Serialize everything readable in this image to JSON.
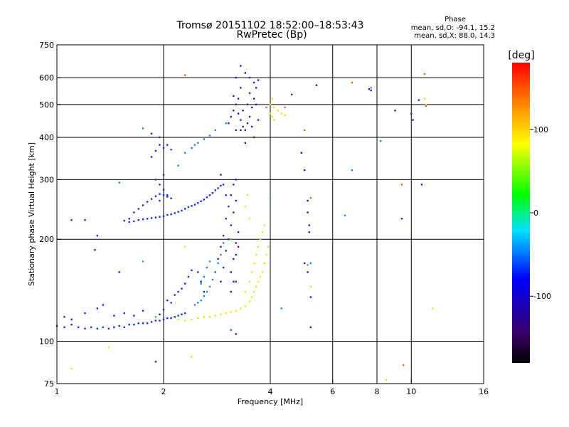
{
  "header": {
    "title": "Tromsø 20151102 18:52:00–18:53:43",
    "subtitle": "RwPretec (Bp)"
  },
  "phase_box": {
    "title": "Phase",
    "line1": "mean, sd,O: -94.1, 15.2",
    "line2": "mean, sd,X:  88.0, 14.3"
  },
  "chart_data": {
    "type": "scatter",
    "xlabel": "Frequency [MHz]",
    "ylabel": "Stationary phase Virtual Height [km]",
    "x_scale": "log",
    "y_scale": "log",
    "xlim": [
      1,
      16
    ],
    "ylim": [
      75,
      750
    ],
    "x_ticks": [
      1,
      2,
      4,
      6,
      8,
      10,
      16
    ],
    "x_tick_labels": [
      "1",
      "2",
      "4",
      "6",
      "8",
      "10",
      "16"
    ],
    "x_grid": [
      2,
      4,
      6,
      8,
      10
    ],
    "y_ticks": [
      75,
      100,
      200,
      300,
      400,
      500,
      600,
      750
    ],
    "y_tick_labels": [
      "75",
      "100",
      "200",
      "300",
      "400",
      "500",
      "600",
      "750"
    ],
    "y_grid": [
      100,
      200,
      300,
      400,
      500,
      600
    ],
    "grid": true,
    "colorbar": {
      "label": "[deg]",
      "range": [
        -180,
        180
      ],
      "ticks": [
        100,
        0,
        -100
      ],
      "tick_labels": [
        "100",
        "0",
        "-100"
      ]
    },
    "series": [
      {
        "color": "#1a2fe0",
        "points": [
          [
            1.0,
            111
          ],
          [
            1.05,
            110
          ],
          [
            1.1,
            112
          ],
          [
            1.15,
            110
          ],
          [
            1.2,
            109
          ],
          [
            1.25,
            110
          ],
          [
            1.3,
            109
          ],
          [
            1.35,
            110
          ],
          [
            1.4,
            109
          ],
          [
            1.45,
            110
          ],
          [
            1.5,
            111
          ],
          [
            1.55,
            110
          ],
          [
            1.6,
            112
          ],
          [
            1.65,
            112
          ],
          [
            1.7,
            113
          ],
          [
            1.75,
            113
          ],
          [
            1.8,
            113
          ],
          [
            1.85,
            114
          ],
          [
            1.9,
            115
          ],
          [
            1.95,
            115
          ],
          [
            2.0,
            116
          ],
          [
            2.05,
            117
          ],
          [
            2.1,
            117
          ],
          [
            2.15,
            118
          ],
          [
            2.2,
            119
          ],
          [
            2.25,
            120
          ],
          [
            2.3,
            121
          ],
          [
            1.55,
            227
          ],
          [
            1.6,
            225
          ],
          [
            1.65,
            226
          ],
          [
            1.7,
            228
          ],
          [
            1.75,
            229
          ],
          [
            1.8,
            230
          ],
          [
            1.85,
            231
          ],
          [
            1.9,
            232
          ],
          [
            1.95,
            233
          ],
          [
            2.0,
            234
          ],
          [
            2.05,
            236
          ],
          [
            2.1,
            237
          ],
          [
            2.15,
            239
          ],
          [
            2.2,
            241
          ],
          [
            2.25,
            243
          ],
          [
            2.3,
            246
          ],
          [
            2.35,
            249
          ],
          [
            2.4,
            251
          ],
          [
            2.45,
            253
          ],
          [
            2.5,
            256
          ],
          [
            2.55,
            259
          ],
          [
            2.6,
            262
          ],
          [
            2.65,
            266
          ],
          [
            2.7,
            270
          ],
          [
            2.75,
            274
          ],
          [
            2.8,
            279
          ],
          [
            2.85,
            283
          ],
          [
            2.9,
            288
          ],
          [
            1.65,
            240
          ],
          [
            1.7,
            246
          ],
          [
            1.75,
            252
          ],
          [
            1.8,
            258
          ],
          [
            1.85,
            263
          ],
          [
            1.9,
            268
          ],
          [
            1.95,
            272
          ],
          [
            2.0,
            270
          ],
          [
            2.05,
            267
          ],
          [
            2.1,
            264
          ],
          [
            1.05,
            118
          ],
          [
            1.1,
            116
          ],
          [
            1.2,
            121
          ],
          [
            1.3,
            125
          ],
          [
            1.35,
            128
          ],
          [
            1.45,
            119
          ],
          [
            1.55,
            121
          ],
          [
            1.65,
            119
          ],
          [
            1.75,
            123
          ],
          [
            1.95,
            120
          ],
          [
            2.0,
            124
          ],
          [
            2.05,
            132
          ],
          [
            2.1,
            130
          ],
          [
            2.15,
            137
          ],
          [
            2.2,
            140
          ],
          [
            2.25,
            143
          ],
          [
            2.3,
            148
          ],
          [
            2.35,
            155
          ],
          [
            2.4,
            162
          ],
          [
            2.5,
            160
          ],
          [
            2.55,
            150
          ],
          [
            2.6,
            140
          ],
          [
            1.9,
            300
          ],
          [
            1.95,
            290
          ],
          [
            2.0,
            280
          ],
          [
            2.05,
            270
          ],
          [
            1.95,
            260
          ],
          [
            2.0,
            310
          ],
          [
            1.85,
            350
          ],
          [
            1.9,
            365
          ],
          [
            1.95,
            380
          ],
          [
            2.0,
            372
          ],
          [
            2.05,
            380
          ],
          [
            1.85,
            410
          ],
          [
            1.95,
            400
          ],
          [
            2.1,
            368
          ],
          [
            2.9,
            310
          ],
          [
            2.95,
            290
          ],
          [
            3.0,
            270
          ],
          [
            1.1,
            228
          ],
          [
            1.2,
            228
          ],
          [
            1.28,
            186
          ],
          [
            1.3,
            205
          ],
          [
            1.5,
            160
          ],
          [
            1.6,
            230
          ],
          [
            1.9,
            87
          ]
        ]
      },
      {
        "color": "#2a1fb0",
        "points": [
          [
            2.8,
            160
          ],
          [
            2.85,
            175
          ],
          [
            2.9,
            190
          ],
          [
            2.95,
            205
          ],
          [
            3.0,
            230
          ],
          [
            3.05,
            250
          ],
          [
            3.1,
            270
          ],
          [
            3.15,
            290
          ],
          [
            3.2,
            300
          ],
          [
            2.9,
            150
          ],
          [
            2.95,
            165
          ],
          [
            3.0,
            185
          ],
          [
            3.05,
            200
          ],
          [
            3.1,
            220
          ],
          [
            3.15,
            240
          ],
          [
            3.2,
            260
          ],
          [
            3.1,
            160
          ],
          [
            3.15,
            175
          ],
          [
            3.2,
            195
          ],
          [
            3.25,
            210
          ],
          [
            3.2,
            180
          ],
          [
            3.25,
            190
          ],
          [
            3.1,
            140
          ],
          [
            3.15,
            150
          ],
          [
            3.2,
            150
          ],
          [
            3.1,
            108
          ],
          [
            3.2,
            105
          ],
          [
            3.05,
            440
          ],
          [
            3.1,
            460
          ],
          [
            3.15,
            480
          ],
          [
            3.2,
            500
          ],
          [
            3.25,
            470
          ],
          [
            3.3,
            450
          ],
          [
            3.35,
            430
          ],
          [
            3.4,
            420
          ],
          [
            3.45,
            440
          ],
          [
            3.5,
            460
          ],
          [
            3.55,
            490
          ],
          [
            3.6,
            520
          ],
          [
            3.65,
            560
          ],
          [
            3.7,
            590
          ],
          [
            3.25,
            520
          ],
          [
            3.3,
            560
          ],
          [
            3.2,
            600
          ],
          [
            3.3,
            650
          ],
          [
            3.4,
            620
          ],
          [
            3.5,
            600
          ],
          [
            3.6,
            580
          ],
          [
            3.15,
            530
          ],
          [
            3.35,
            480
          ],
          [
            3.45,
            500
          ],
          [
            3.55,
            430
          ],
          [
            3.4,
            385
          ],
          [
            3.6,
            400
          ],
          [
            3.7,
            450
          ],
          [
            3.65,
            500
          ],
          [
            3.5,
            540
          ],
          [
            3.3,
            420
          ],
          [
            3.2,
            420
          ],
          [
            4.9,
            360
          ],
          [
            5.0,
            320
          ],
          [
            5.1,
            260
          ],
          [
            5.1,
            240
          ],
          [
            5.15,
            220
          ],
          [
            5.15,
            210
          ],
          [
            5.0,
            170
          ],
          [
            5.1,
            160
          ],
          [
            5.2,
            135
          ],
          [
            5.2,
            110
          ],
          [
            4.6,
            535
          ],
          [
            5.4,
            570
          ],
          [
            7.6,
            555
          ],
          [
            7.7,
            550
          ],
          [
            9.0,
            480
          ],
          [
            9.4,
            230
          ],
          [
            10.0,
            470
          ],
          [
            10.1,
            450
          ],
          [
            10.5,
            515
          ],
          [
            10.7,
            290
          ]
        ]
      },
      {
        "color": "#1e8ae8",
        "points": [
          [
            2.45,
            128
          ],
          [
            2.5,
            130
          ],
          [
            2.55,
            132
          ],
          [
            2.6,
            136
          ],
          [
            2.65,
            140
          ],
          [
            2.7,
            145
          ],
          [
            2.75,
            152
          ],
          [
            2.8,
            160
          ],
          [
            2.85,
            170
          ],
          [
            2.9,
            180
          ],
          [
            2.95,
            195
          ],
          [
            2.55,
            148
          ],
          [
            2.6,
            155
          ],
          [
            2.65,
            165
          ],
          [
            2.7,
            172
          ],
          [
            2.2,
            330
          ],
          [
            2.3,
            360
          ],
          [
            2.4,
            372
          ],
          [
            2.45,
            380
          ],
          [
            2.5,
            385
          ],
          [
            2.6,
            395
          ],
          [
            2.7,
            405
          ],
          [
            2.8,
            420
          ],
          [
            3.0,
            440
          ],
          [
            1.5,
            294
          ],
          [
            1.75,
            425
          ],
          [
            3.1,
            108
          ],
          [
            4.3,
            125
          ],
          [
            5.2,
            170
          ],
          [
            6.5,
            235
          ],
          [
            6.8,
            320
          ],
          [
            8.2,
            390
          ]
        ]
      },
      {
        "color": "#e8e81e",
        "points": [
          [
            2.2,
            116
          ],
          [
            2.3,
            115
          ],
          [
            2.4,
            116
          ],
          [
            2.5,
            117
          ],
          [
            2.6,
            118
          ],
          [
            2.7,
            118
          ],
          [
            2.8,
            119
          ],
          [
            2.9,
            120
          ],
          [
            3.0,
            121
          ],
          [
            3.1,
            122
          ],
          [
            3.2,
            123
          ],
          [
            3.3,
            125
          ],
          [
            3.4,
            127
          ],
          [
            3.5,
            131
          ],
          [
            3.55,
            135
          ],
          [
            3.6,
            140
          ],
          [
            3.65,
            145
          ],
          [
            3.7,
            150
          ],
          [
            3.75,
            155
          ],
          [
            3.8,
            160
          ],
          [
            3.85,
            170
          ],
          [
            3.9,
            180
          ],
          [
            3.95,
            190
          ],
          [
            3.4,
            140
          ],
          [
            3.5,
            150
          ],
          [
            3.55,
            160
          ],
          [
            3.6,
            170
          ],
          [
            3.65,
            180
          ],
          [
            3.7,
            190
          ],
          [
            3.75,
            200
          ],
          [
            3.8,
            210
          ],
          [
            3.85,
            220
          ],
          [
            3.5,
            230
          ],
          [
            3.4,
            250
          ],
          [
            3.45,
            270
          ],
          [
            4.0,
            470
          ],
          [
            4.05,
            460
          ],
          [
            4.1,
            450
          ],
          [
            4.2,
            480
          ],
          [
            4.3,
            470
          ],
          [
            4.4,
            465
          ],
          [
            4.0,
            500
          ],
          [
            4.05,
            520
          ],
          [
            4.1,
            490
          ],
          [
            10.9,
            520
          ],
          [
            11.0,
            500
          ],
          [
            1.1,
            83
          ],
          [
            1.4,
            96
          ],
          [
            2.3,
            190
          ],
          [
            2.4,
            90
          ],
          [
            5.2,
            145
          ],
          [
            8.5,
            77
          ],
          [
            11.5,
            125
          ]
        ]
      },
      {
        "color": "#e86a1e",
        "points": [
          [
            3.9,
            490
          ],
          [
            4.4,
            490
          ],
          [
            5.0,
            420
          ],
          [
            5.2,
            265
          ],
          [
            6.8,
            580
          ],
          [
            7.7,
            560
          ],
          [
            9.4,
            290
          ],
          [
            9.5,
            85
          ],
          [
            10.9,
            615
          ],
          [
            11.0,
            495
          ],
          [
            2.3,
            610
          ]
        ]
      },
      {
        "color": "#2acc3a",
        "points": [
          [
            1.75,
            172
          ],
          [
            1.9,
            118
          ],
          [
            3.1,
            200
          ],
          [
            4.0,
            265
          ],
          [
            5.1,
            168
          ]
        ]
      }
    ]
  }
}
